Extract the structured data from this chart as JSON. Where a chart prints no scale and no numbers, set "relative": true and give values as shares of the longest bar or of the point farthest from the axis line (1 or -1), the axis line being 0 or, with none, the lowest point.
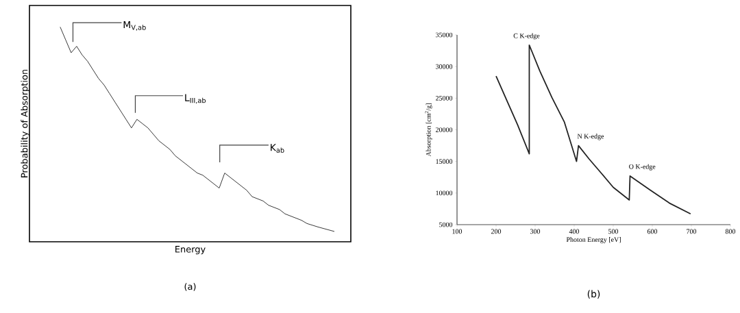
{
  "chart_data": [
    {
      "type": "line",
      "title": "(a)",
      "xlabel": "Energy",
      "ylabel": "Probability of Absorption",
      "relative": true,
      "grid": false,
      "marker": "none",
      "line_style": "solid",
      "annotations": [
        "M$_{V,ab}$",
        "L$_{III,ab}$",
        "K$_{ab}$"
      ],
      "categories": [
        null,
        null,
        null,
        null,
        null,
        null,
        null,
        null,
        null,
        null,
        null,
        null,
        null,
        null,
        null,
        null,
        null,
        null,
        null,
        null,
        null,
        null,
        null,
        null,
        null,
        null,
        null,
        null,
        null,
        null,
        null,
        null,
        null,
        null,
        null,
        null,
        null,
        null,
        null,
        null,
        null,
        null,
        null,
        null,
        null,
        null,
        null,
        null,
        null,
        null,
        null
      ],
      "series": [
        {
          "color": "#222222",
          "values": [
            1.0,
            0.94,
            0.88,
            0.91,
            0.87,
            0.84,
            0.8,
            0.76,
            0.73,
            0.69,
            0.65,
            0.61,
            0.57,
            0.53,
            0.57,
            0.55,
            0.53,
            0.5,
            0.47,
            0.45,
            0.43,
            0.4,
            0.38,
            0.36,
            0.34,
            0.32,
            0.31,
            0.29,
            0.27,
            0.25,
            0.32,
            0.3,
            0.28,
            0.26,
            0.24,
            0.21,
            0.2,
            0.19,
            0.17,
            0.16,
            0.15,
            0.13,
            0.12,
            0.11,
            0.1,
            0.085,
            0.077,
            0.069,
            0.062,
            0.055,
            0.048
          ]
        }
      ]
    },
    {
      "type": "line",
      "title": "(b)",
      "xlabel": "Photon Energy [eV]",
      "ylabel": "Absorption [cm$^{2}$/g]",
      "grid": false,
      "marker": "none",
      "line_style": "solid",
      "xlim": [
        100,
        800
      ],
      "xticks": [
        100,
        200,
        300,
        400,
        500,
        600,
        700,
        800
      ],
      "ylim": [
        5000,
        35000
      ],
      "yticks": [
        5000,
        10000,
        15000,
        20000,
        25000,
        30000,
        35000
      ],
      "annotations": [
        {
          "text": "C K-edge",
          "x": 285,
          "y": 33400
        },
        {
          "text": "N K-edge",
          "x": 411,
          "y": 17500
        },
        {
          "text": "O K-edge",
          "x": 543,
          "y": 12700
        }
      ],
      "series": [
        {
          "color": "#222222",
          "x": [
            200,
            230,
            255,
            285,
            285,
            312,
            343,
            375,
            406,
            411,
            438,
            470,
            500,
            541,
            543,
            594,
            644,
            698
          ],
          "values": [
            28500,
            24300,
            20800,
            16200,
            33400,
            29300,
            25100,
            21200,
            15000,
            17500,
            15400,
            13100,
            10900,
            8900,
            12700,
            10500,
            8400,
            6700
          ]
        }
      ]
    }
  ]
}
